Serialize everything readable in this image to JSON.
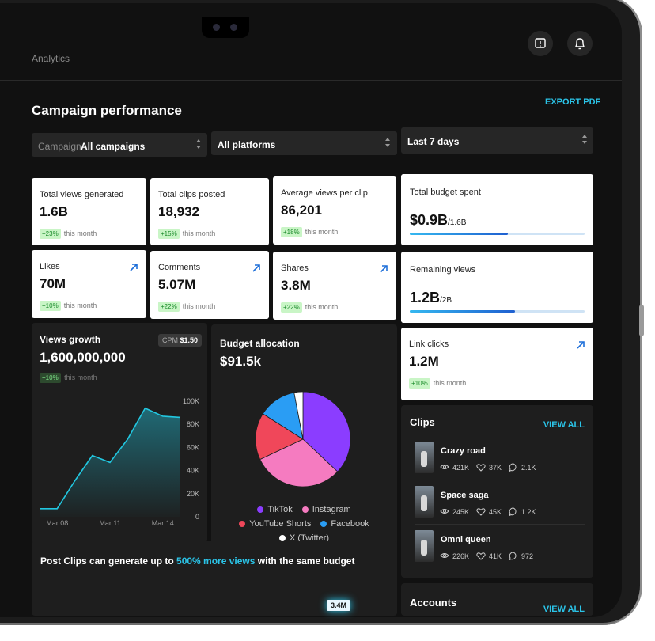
{
  "header": {
    "section": "Analytics"
  },
  "page": {
    "title": "Campaign performance",
    "export": "EXPORT PDF"
  },
  "filters": [
    {
      "label": "Campaign",
      "value": "All campaigns"
    },
    {
      "value": "All platforms"
    },
    {
      "value": "Last 7 days"
    }
  ],
  "stats": [
    {
      "label": "Total views generated",
      "value": "1.6B",
      "change": "+23%",
      "period": "this month"
    },
    {
      "label": "Total clips posted",
      "value": "18,932",
      "change": "+15%",
      "period": "this month"
    },
    {
      "label": "Average views per clip",
      "value": "86,201",
      "change": "+18%",
      "period": "this month"
    },
    {
      "label": "Likes",
      "value": "70M",
      "change": "+10%",
      "period": "this month"
    },
    {
      "label": "Comments",
      "value": "5.07M",
      "change": "+22%",
      "period": "this month"
    },
    {
      "label": "Shares",
      "value": "3.8M",
      "change": "+22%",
      "period": "this month"
    },
    {
      "label": "Link clicks",
      "value": "1.2M",
      "change": "+10%",
      "period": "this month"
    }
  ],
  "budget_cards": [
    {
      "label": "Total budget spent",
      "value": "$0.9B",
      "total": "/1.6B",
      "progress": 0.9,
      "max": 1.6
    },
    {
      "label": "Remaining views",
      "value": "1.2B",
      "total": "/2B",
      "progress": 1.2,
      "max": 2
    }
  ],
  "views_growth": {
    "title": "Views growth",
    "value": "1,600,000,000",
    "change": "+10%",
    "period": "this month",
    "cpm_label": "CPM",
    "cpm_value": "$1.50",
    "chart": {
      "type": "area",
      "categories": [
        null,
        "Mar 08",
        null,
        null,
        "Mar 11",
        null,
        null,
        "Mar 14",
        null
      ],
      "values": [
        7000,
        7000,
        31000,
        53000,
        47000,
        67000,
        94000,
        87000,
        86000
      ],
      "ylim": [
        0,
        100000
      ],
      "yticks": [
        0,
        {
          "value": 20000,
          "label": "20K"
        },
        {
          "value": 40000,
          "label": "40K"
        },
        {
          "value": 60000,
          "label": "60K"
        },
        {
          "value": 80000,
          "label": "80K"
        },
        {
          "value": 100000,
          "label": "100K"
        }
      ],
      "color": "#22c7e0",
      "grid": false
    }
  },
  "budget_allocation": {
    "title": "Budget allocation",
    "value": "$91.5k",
    "chart": {
      "type": "pie",
      "categories": [
        "TikTok",
        "Instagram",
        "YouTube Shorts",
        "Facebook",
        "X (Twitter)"
      ],
      "values": [
        37,
        31,
        16,
        13,
        3
      ],
      "colors": [
        "#8b3dff",
        "#f57bc0",
        "#f0475a",
        "#2a9df4",
        "#ffffff"
      ]
    }
  },
  "clips": {
    "title": "Clips",
    "action": "VIEW ALL",
    "items": [
      {
        "name": "Crazy road",
        "views": "421K",
        "likes": "37K",
        "comments": "2.1K"
      },
      {
        "name": "Space saga",
        "views": "245K",
        "likes": "45K",
        "comments": "1.2K"
      },
      {
        "name": "Omni queen",
        "views": "226K",
        "likes": "41K",
        "comments": "972"
      }
    ]
  },
  "accounts": {
    "title": "Accounts",
    "action": "VIEW ALL"
  },
  "promo": {
    "before": "Post Clips can generate up to ",
    "highlight": "500% more views",
    "after": " with the same budget",
    "badge": "3.4M"
  }
}
